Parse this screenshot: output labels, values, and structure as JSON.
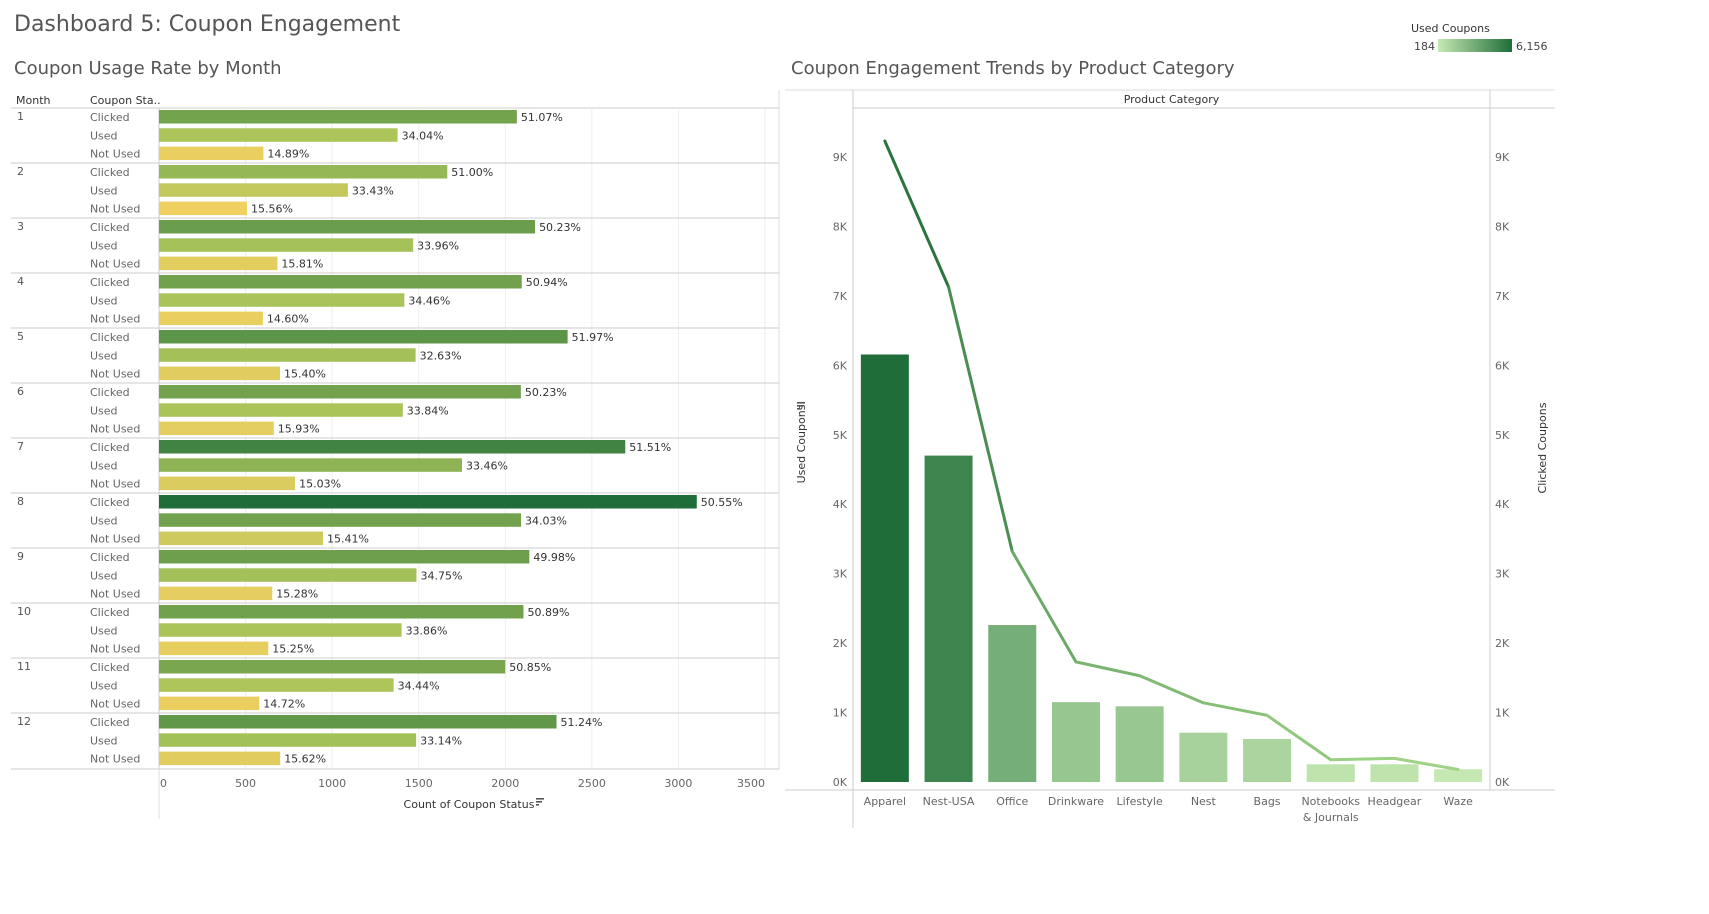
{
  "dashboard": {
    "title": "Dashboard 5: Coupon Engagement"
  },
  "legend": {
    "title": "Used Coupons",
    "min": "184",
    "max": "6,156",
    "color_low": "#c6e8b2",
    "color_high": "#1f6e3a"
  },
  "left_chart": {
    "title": "Coupon Usage Rate by Month",
    "col_header_month": "Month",
    "col_header_status": "Coupon Sta..",
    "xlabel": "Count of Coupon Status",
    "sort_icon": "sort-descending-icon"
  },
  "right_chart": {
    "title": "Coupon Engagement Trends by Product Category",
    "header": "Product Category",
    "ylabel_left": "Used Coupons",
    "ylabel_right": "Clicked Coupons",
    "sort_icon": "sort-descending-icon"
  },
  "chart_data": [
    {
      "type": "bar",
      "orientation": "horizontal",
      "title": "Coupon Usage Rate by Month",
      "xlabel": "Count of Coupon Status",
      "xlim": [
        0,
        3500
      ],
      "xticks": [
        0,
        500,
        1000,
        1500,
        2000,
        2500,
        3000,
        3500
      ],
      "status_labels": [
        "Clicked",
        "Used",
        "Not Used"
      ],
      "months": [
        {
          "month": "1",
          "values": [
            2067,
            1378,
            603
          ],
          "labels": [
            "51.07%",
            "34.04%",
            "14.89%"
          ]
        },
        {
          "month": "2",
          "values": [
            1665,
            1091,
            508
          ],
          "labels": [
            "51.00%",
            "33.43%",
            "15.56%"
          ]
        },
        {
          "month": "3",
          "values": [
            2172,
            1468,
            684
          ],
          "labels": [
            "50.23%",
            "33.96%",
            "15.81%"
          ]
        },
        {
          "month": "4",
          "values": [
            2095,
            1417,
            600
          ],
          "labels": [
            "50.94%",
            "34.46%",
            "14.60%"
          ]
        },
        {
          "month": "5",
          "values": [
            2360,
            1482,
            699
          ],
          "labels": [
            "51.97%",
            "32.63%",
            "15.40%"
          ]
        },
        {
          "month": "6",
          "values": [
            2090,
            1408,
            663
          ],
          "labels": [
            "50.23%",
            "33.84%",
            "15.93%"
          ]
        },
        {
          "month": "7",
          "values": [
            2693,
            1750,
            786
          ],
          "labels": [
            "51.51%",
            "33.46%",
            "15.03%"
          ]
        },
        {
          "month": "8",
          "values": [
            3106,
            2091,
            947
          ],
          "labels": [
            "50.55%",
            "34.03%",
            "15.41%"
          ]
        },
        {
          "month": "9",
          "values": [
            2139,
            1487,
            654
          ],
          "labels": [
            "49.98%",
            "34.75%",
            "15.28%"
          ]
        },
        {
          "month": "10",
          "values": [
            2105,
            1401,
            631
          ],
          "labels": [
            "50.89%",
            "33.86%",
            "15.25%"
          ]
        },
        {
          "month": "11",
          "values": [
            2000,
            1355,
            579
          ],
          "labels": [
            "50.85%",
            "34.44%",
            "14.72%"
          ]
        },
        {
          "month": "12",
          "values": [
            2296,
            1485,
            700
          ],
          "labels": [
            "51.24%",
            "33.14%",
            "15.62%"
          ]
        }
      ]
    },
    {
      "type": "bar",
      "combo": "bar+line",
      "title": "Coupon Engagement Trends by Product Category",
      "xlabel": "Product Category",
      "ylabel": "Used Coupons",
      "y2label": "Clicked Coupons",
      "ylim": [
        0,
        9700
      ],
      "yticks": [
        "0K",
        "1K",
        "2K",
        "3K",
        "4K",
        "5K",
        "6K",
        "7K",
        "8K",
        "9K"
      ],
      "categories": [
        "Apparel",
        "Nest-USA",
        "Office",
        "Drinkware",
        "Lifestyle",
        "Nest",
        "Bags",
        "Notebooks & Journals",
        "Headgear",
        "Waze"
      ],
      "series": [
        {
          "name": "Used Coupons",
          "kind": "bar",
          "values": [
            6156,
            4700,
            2260,
            1150,
            1090,
            710,
            620,
            255,
            255,
            184
          ]
        },
        {
          "name": "Clicked Coupons",
          "kind": "line",
          "values": [
            9230,
            7130,
            3320,
            1730,
            1530,
            1140,
            960,
            320,
            340,
            180
          ]
        }
      ]
    }
  ]
}
